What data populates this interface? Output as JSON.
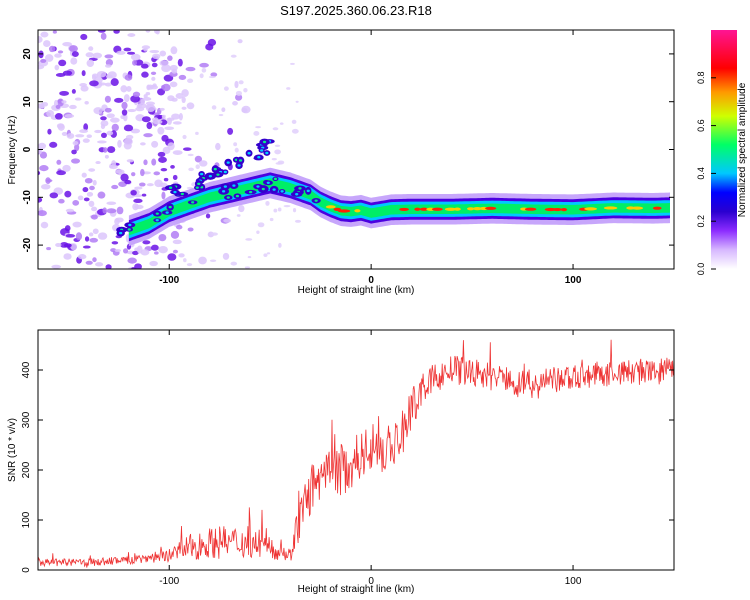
{
  "title": "S197.2025.360.06.23.R18",
  "chart_data": [
    {
      "type": "heatmap",
      "name": "spectrogram",
      "xlabel": "Height of straight line (km)",
      "ylabel": "Frequency (Hz)",
      "xlim": [
        -165,
        150
      ],
      "ylim": [
        -25,
        25
      ],
      "xticks": [
        -100,
        0,
        100
      ],
      "xtick_labels": [
        "-100",
        "0",
        "100"
      ],
      "yticks": [
        -20,
        -10,
        0,
        10,
        20
      ],
      "ytick_labels": [
        "-20",
        "-10",
        "0",
        "10",
        "20"
      ],
      "ridge": {
        "x": [
          -120,
          -110,
          -100,
          -90,
          -80,
          -70,
          -60,
          -50,
          -40,
          -30,
          -25,
          -20,
          -15,
          -10,
          -5,
          0,
          10,
          20,
          40,
          60,
          80,
          100,
          120,
          140,
          148
        ],
        "y": [
          -17,
          -15.5,
          -13,
          -11.5,
          -10,
          -9,
          -8,
          -7,
          -8,
          -9.5,
          -11,
          -12,
          -12.8,
          -13,
          -12.7,
          -13.3,
          -12.6,
          -12.5,
          -12.5,
          -12.3,
          -12.5,
          -12.6,
          -12.2,
          -12.3,
          -12.2
        ]
      },
      "branch": {
        "x": [
          -100,
          -90,
          -80,
          -70,
          -60,
          -55,
          -50
        ],
        "y": [
          -9,
          -7.5,
          -6,
          -4,
          -2,
          0,
          1
        ]
      },
      "colorbar": {
        "label": "Normalized spectral amplitude",
        "range": [
          0,
          1
        ],
        "ticks": [
          0.0,
          0.2,
          0.4,
          0.6,
          0.8
        ],
        "tick_labels": [
          "0.0",
          "0.2",
          "0.4",
          "0.6",
          "0.8"
        ],
        "colors": [
          "#ffffff",
          "#d7b8ff",
          "#8c2cff",
          "#3b00d9",
          "#0000ff",
          "#00c8ff",
          "#00ff66",
          "#cfff00",
          "#ff9900",
          "#ff0000",
          "#ff1493"
        ]
      }
    },
    {
      "type": "line",
      "name": "snr",
      "xlabel": "Height of straight line (km)",
      "ylabel": "SNR (10 * v/v)",
      "xlim": [
        -165,
        150
      ],
      "ylim": [
        0,
        480
      ],
      "xticks": [
        -100,
        0,
        100
      ],
      "xtick_labels": [
        "-100",
        "0",
        "100"
      ],
      "yticks": [
        0,
        100,
        200,
        300,
        400
      ],
      "ytick_labels": [
        "0",
        "100",
        "200",
        "300",
        "400"
      ],
      "color": "#ee3333",
      "series": [
        {
          "name": "SNR",
          "x": [
            -165,
            -140,
            -120,
            -100,
            -90,
            -80,
            -70,
            -60,
            -50,
            -40,
            -35,
            -30,
            -25,
            -20,
            -15,
            -10,
            -5,
            0,
            5,
            10,
            15,
            20,
            25,
            30,
            40,
            50,
            60,
            80,
            100,
            120,
            140,
            150
          ],
          "base": [
            15,
            15,
            20,
            30,
            45,
            55,
            55,
            55,
            45,
            30,
            110,
            160,
            170,
            190,
            200,
            210,
            230,
            250,
            240,
            240,
            270,
            320,
            360,
            380,
            400,
            395,
            385,
            370,
            385,
            395,
            395,
            400
          ],
          "noise": [
            10,
            10,
            12,
            18,
            35,
            40,
            45,
            40,
            30,
            20,
            60,
            70,
            70,
            70,
            70,
            70,
            65,
            65,
            65,
            65,
            60,
            55,
            40,
            40,
            40,
            40,
            40,
            40,
            35,
            35,
            35,
            35
          ]
        }
      ]
    }
  ]
}
